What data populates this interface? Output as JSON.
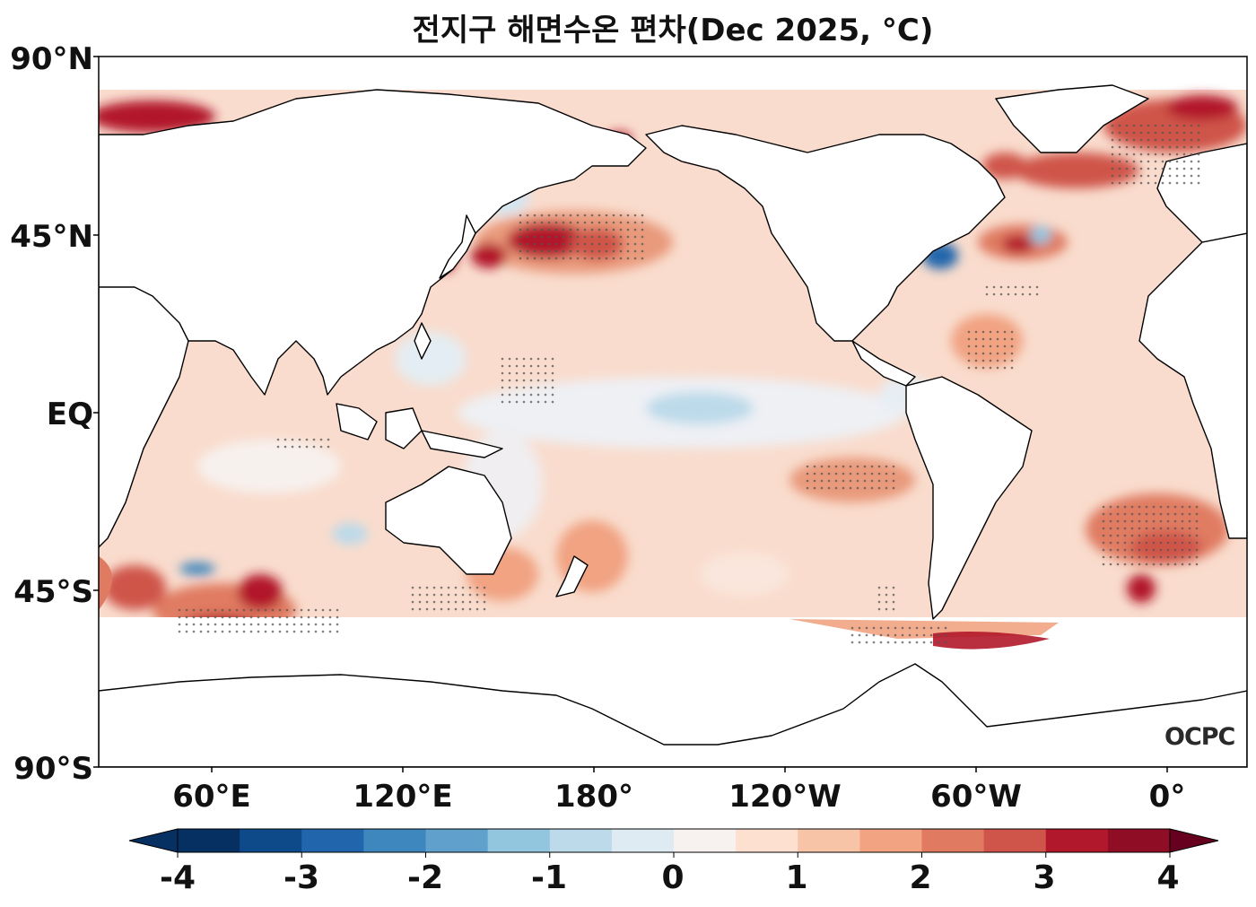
{
  "title": "전지구 해면수온 편차(Dec 2025, °C)",
  "axes": {
    "lat_labels": [
      "90°N",
      "45°N",
      "EQ",
      "45°S",
      "90°S"
    ],
    "lon_labels": [
      "60°E",
      "120°E",
      "180°",
      "120°W",
      "60°W",
      "0°"
    ]
  },
  "colorbar": {
    "ticks": [
      "-4",
      "-3",
      "-2",
      "-1",
      "0",
      "1",
      "2",
      "3",
      "4"
    ],
    "levels": [
      -4,
      -3.5,
      -3,
      -2.5,
      -2,
      -1.5,
      -1,
      -0.5,
      0,
      0.5,
      1,
      1.5,
      2,
      2.5,
      3,
      3.5,
      4
    ],
    "colors": [
      "#053061",
      "#0e4a8a",
      "#2166ac",
      "#3d86be",
      "#5fa0cc",
      "#92c5de",
      "#bcdaea",
      "#deebf3",
      "#f7f2ef",
      "#fde0d0",
      "#f8c4a8",
      "#f1a382",
      "#e07b62",
      "#cf5449",
      "#b2182b",
      "#8f0d25"
    ],
    "under_color": "#053061",
    "over_color": "#67001f"
  },
  "logo": "OCPC"
}
